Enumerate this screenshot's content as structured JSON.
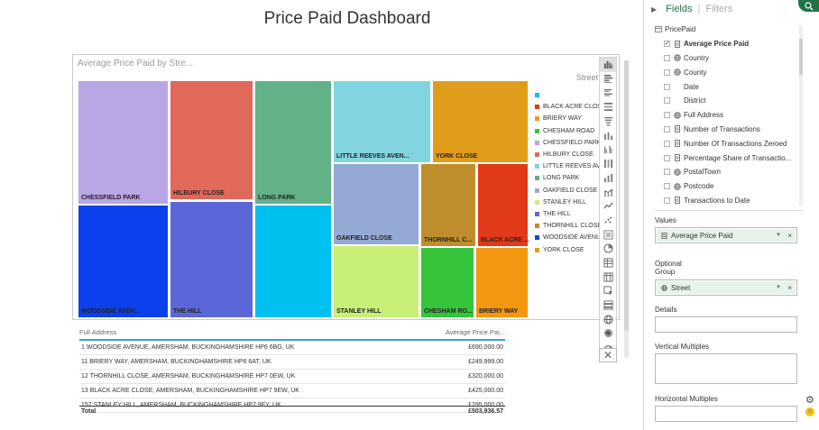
{
  "dashboard": {
    "title": "Price Paid Dashboard"
  },
  "viz": {
    "title": "Average Price Paid by Stre...",
    "legend_title": "Street",
    "treemap": [
      {
        "label": "CHESSFIELD PARK",
        "color": "#b9a6e5"
      },
      {
        "label": "WOODSIDE AVEN...",
        "color": "#0a41eb"
      },
      {
        "label": "HILBURY CLOSE",
        "color": "#e0695a"
      },
      {
        "label": "THE HILL",
        "color": "#5b67d6"
      },
      {
        "label": "LONG PARK",
        "color": "#63b187"
      },
      {
        "label": "",
        "color": "#00c0f0"
      },
      {
        "label": "LITTLE REEVES AVEN...",
        "color": "#82d4e0"
      },
      {
        "label": "YORK CLOSE",
        "color": "#df9d1b"
      },
      {
        "label": "OAKFIELD CLOSE",
        "color": "#94a9d3"
      },
      {
        "label": "THORNHILL C...",
        "color": "#bf8e2c"
      },
      {
        "label": "BLACK ACRE ...",
        "color": "#e03a1a"
      },
      {
        "label": "STANLEY HILL",
        "color": "#c8ef78"
      },
      {
        "label": "CHESHAM RO...",
        "color": "#35c43c"
      },
      {
        "label": "BRIERY WAY",
        "color": "#f49710"
      }
    ],
    "legend": [
      {
        "label": "",
        "color": "#00c0f0"
      },
      {
        "label": "BLACK ACRE CLOSE",
        "color": "#e03a1a"
      },
      {
        "label": "BRIERY WAY",
        "color": "#f49710"
      },
      {
        "label": "CHESHAM ROAD",
        "color": "#35c43c"
      },
      {
        "label": "CHESSFIELD PARK",
        "color": "#b9a6e5"
      },
      {
        "label": "HILBURY CLOSE",
        "color": "#e0695a"
      },
      {
        "label": "LITTLE REEVES AVE...",
        "color": "#82d4e0"
      },
      {
        "label": "LONG PARK",
        "color": "#63b187"
      },
      {
        "label": "OAKFIELD CLOSE",
        "color": "#94a9d3"
      },
      {
        "label": "STANLEY HILL",
        "color": "#c8ef78"
      },
      {
        "label": "THE HILL",
        "color": "#5b67d6"
      },
      {
        "label": "THORNHILL CLOSE",
        "color": "#bf8e2c"
      },
      {
        "label": "WOODSIDE AVENUE",
        "color": "#0a41eb"
      },
      {
        "label": "YORK CLOSE",
        "color": "#df9d1b"
      }
    ]
  },
  "table": {
    "headers": [
      "Full Address",
      "Average Price Pai..."
    ],
    "rows": [
      [
        "1 WOODSIDE AVENUE, AMERSHAM, BUCKINGHAMSHIRE HP6 6BG, UK",
        "£690,000.00"
      ],
      [
        "11 BRIERY WAY, AMERSHAM, BUCKINGHAMSHIRE HP6 6AT, UK",
        "£249,999.00"
      ],
      [
        "12 THORNHILL CLOSE, AMERSHAM, BUCKINGHAMSHIRE HP7 0EW, UK",
        "£320,000.00"
      ],
      [
        "13 BLACK ACRE CLOSE, AMERSHAM, BUCKINGHAMSHIRE HP7 9EW, UK",
        "£425,000.00"
      ],
      [
        "157 STANLEY HILL, AMERSHAM, BUCKINGHAMSHIRE HP7 9EY, UK",
        "£295,000.00"
      ]
    ],
    "total_label": "Total",
    "total_value": "£503,936.57"
  },
  "panel": {
    "tab_fields": "Fields",
    "tab_separator": "|",
    "tab_filters": "Filters",
    "table_name": "PricePaid",
    "fields": [
      {
        "label": "Average Price Paid",
        "icon": "sigma-icon",
        "checked": true,
        "bold": true
      },
      {
        "label": "Country",
        "icon": "globe-icon",
        "checked": false
      },
      {
        "label": "County",
        "icon": "globe-icon",
        "checked": false
      },
      {
        "label": "Date",
        "icon": "none",
        "checked": false
      },
      {
        "label": "District",
        "icon": "none",
        "checked": false
      },
      {
        "label": "Full Address",
        "icon": "globe-icon",
        "checked": false
      },
      {
        "label": "Number of Transactions",
        "icon": "sigma-icon",
        "checked": false
      },
      {
        "label": "Number Of Transactions Zeroed",
        "icon": "sigma-icon",
        "checked": false
      },
      {
        "label": "Percentage Share of Transactio...",
        "icon": "sigma-icon",
        "checked": false
      },
      {
        "label": "PostalTown",
        "icon": "globe-icon",
        "checked": false
      },
      {
        "label": "Postcode",
        "icon": "globe-icon",
        "checked": false
      },
      {
        "label": "Transactions to Date",
        "icon": "sigma-icon",
        "checked": false
      }
    ],
    "values_label": "Values",
    "values_chip": "Average Price Paid",
    "optional_group_label_1": "Optional",
    "optional_group_label_2": "Group",
    "group_chip": "Street",
    "details_label": "Details",
    "vertical_multiples_label": "Vertical Multiples",
    "horizontal_multiples_label": "Horizontal Multiples",
    "close_glyph": "×",
    "check_glyph": "✓"
  }
}
